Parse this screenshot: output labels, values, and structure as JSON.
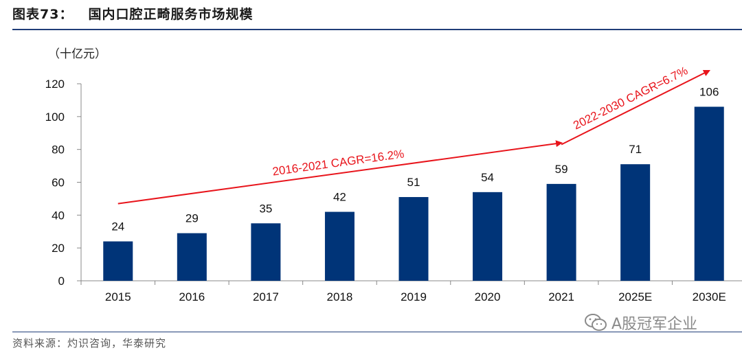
{
  "header": {
    "figure_label": "图表73：",
    "figure_title": "国内口腔正畸服务市场规模"
  },
  "chart_data": {
    "type": "bar",
    "unit_label": "（十亿元）",
    "categories": [
      "2015",
      "2016",
      "2017",
      "2018",
      "2019",
      "2020",
      "2021",
      "2025E",
      "2030E"
    ],
    "values": [
      24,
      29,
      35,
      42,
      51,
      54,
      59,
      71,
      106
    ],
    "data_labels": [
      "24",
      "29",
      "35",
      "42",
      "51",
      "54",
      "59",
      "71",
      "106"
    ],
    "ylim": [
      0,
      120
    ],
    "yticks": [
      0,
      20,
      40,
      60,
      80,
      100,
      120
    ],
    "ytick_labels": [
      "0",
      "20",
      "40",
      "60",
      "80",
      "100",
      "120"
    ],
    "bar_color": "#003478",
    "annotations": [
      {
        "text": "2016-2021 CAGR=16.2%",
        "from": {
          "category": "2015",
          "value": 47
        },
        "to": {
          "category": "2021",
          "value": 84
        }
      },
      {
        "text": "2022-2030 CAGR=6.7%",
        "from": {
          "category": "2021",
          "value": 83
        },
        "to": {
          "category": "2030E",
          "value": 128
        }
      }
    ],
    "annotation_color": "#e8141b"
  },
  "footer": {
    "source": "资料来源：灼识咨询，华泰研究"
  },
  "watermark": {
    "text": "A股冠军企业",
    "icon": "wechat-icon"
  }
}
